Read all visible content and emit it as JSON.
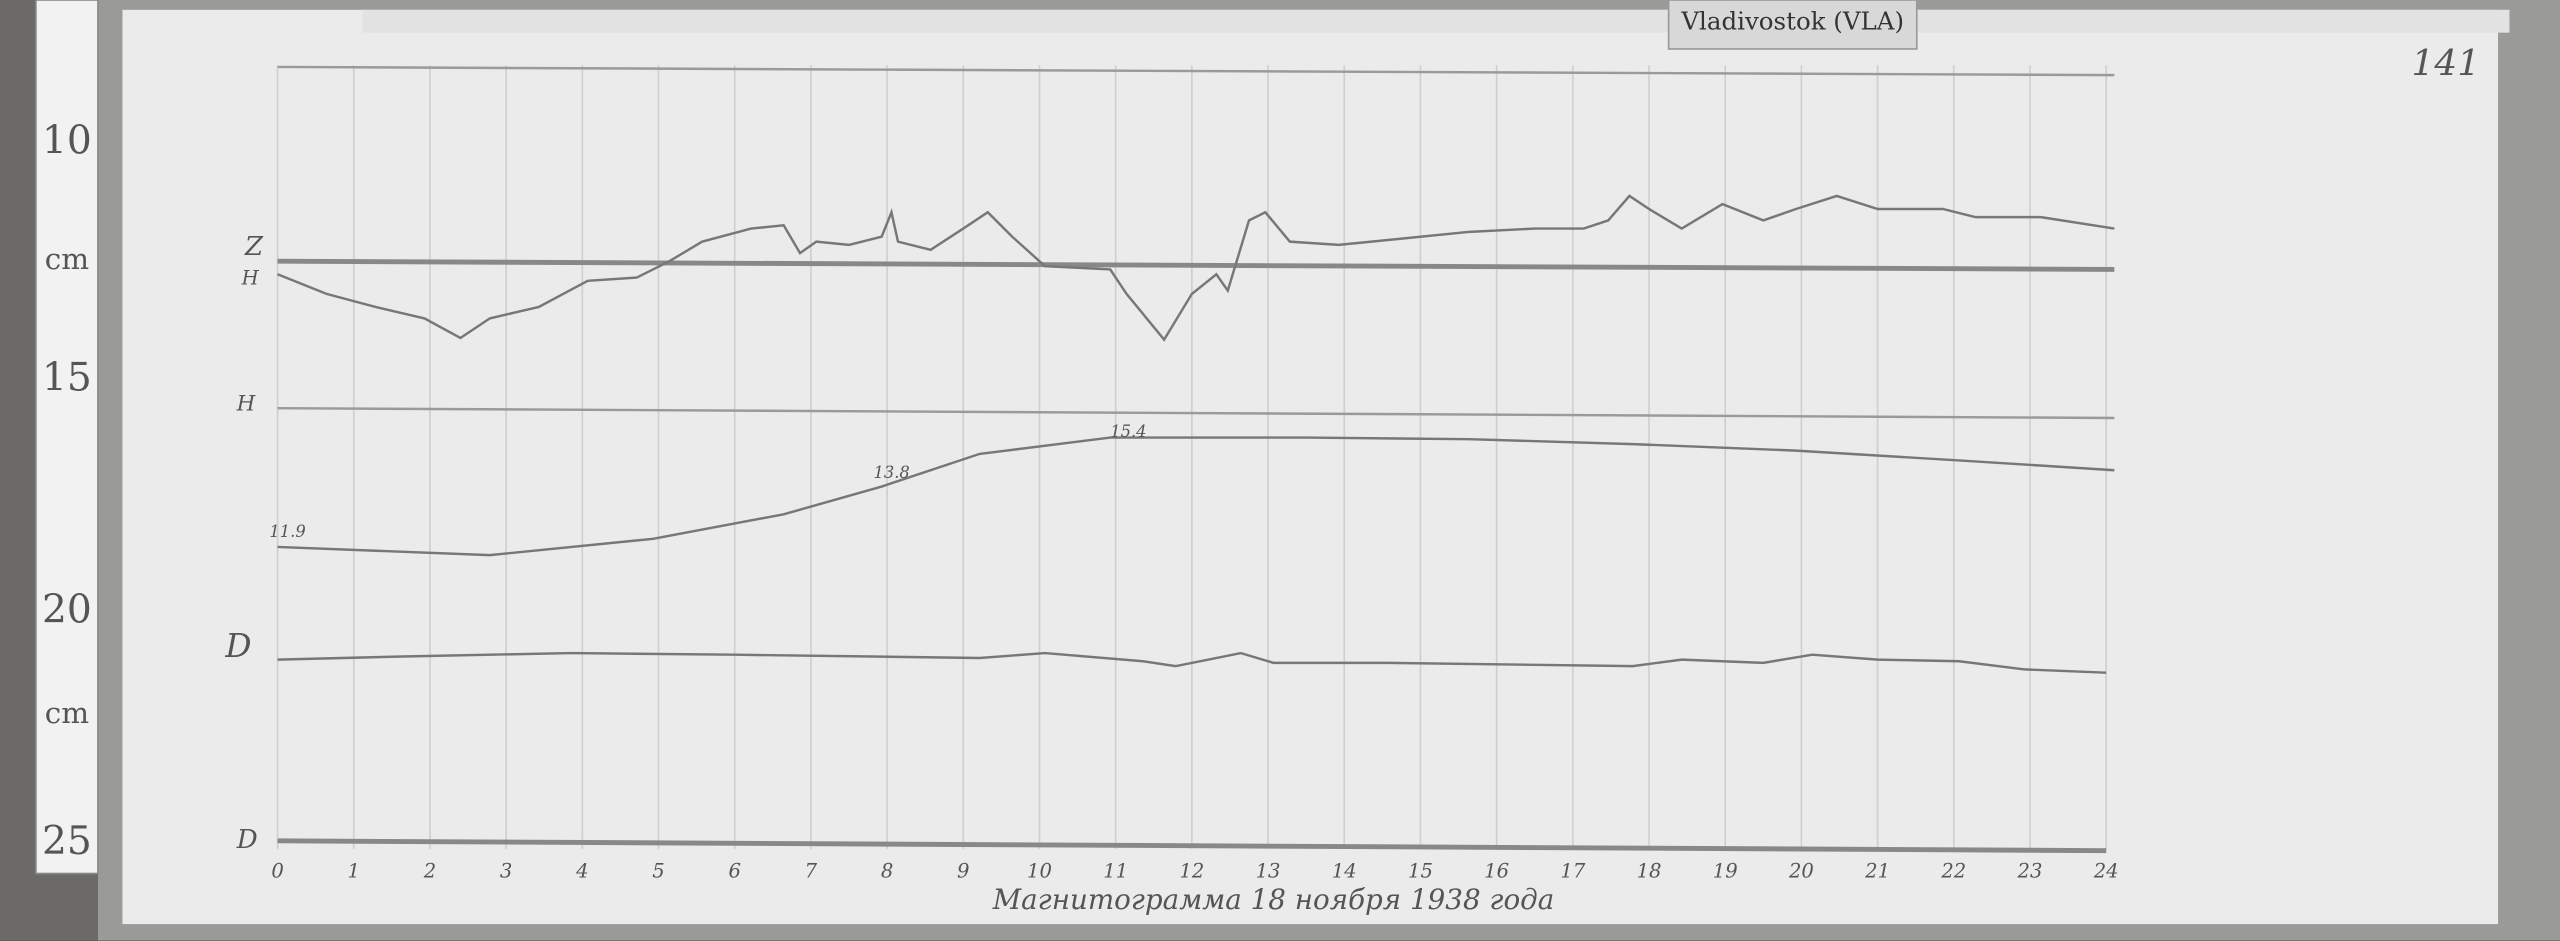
{
  "station_label": "Vladivostok (VLA)",
  "sheet_number": "141",
  "ruler": [
    "10",
    "cm",
    "15",
    "20",
    "cm",
    "25"
  ],
  "trace_labels": [
    "Z",
    "H",
    "H",
    "D",
    "D"
  ],
  "temperature_labels": [
    "11.9",
    "13.8",
    "15.4"
  ],
  "hours": [
    "0",
    "1",
    "2",
    "3",
    "4",
    "5",
    "6",
    "7",
    "8",
    "9",
    "10",
    "11",
    "12",
    "13",
    "14",
    "15",
    "16",
    "17",
    "18",
    "19",
    "20",
    "21",
    "22",
    "23",
    "24"
  ],
  "caption": "Магнитограмма 18 ноября 1938 года"
}
